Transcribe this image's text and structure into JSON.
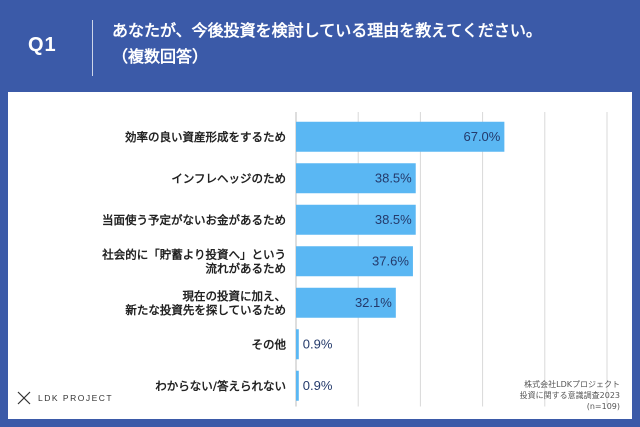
{
  "header": {
    "q_label": "Q1",
    "title_line1": "あなたが、今後投資を検討している理由を教えてください。",
    "title_line2": "（複数回答）"
  },
  "footer": {
    "logo_text": "LDK PROJECT",
    "source_line1": "株式会社LDKプロジェクト",
    "source_line2": "投資に関する意識調査2023",
    "source_line3": "(n=109)"
  },
  "colors": {
    "background": "#3b5aa8",
    "bar": "#5ab7f3",
    "value_text": "#243a6b"
  },
  "chart_data": {
    "type": "bar",
    "orientation": "horizontal",
    "categories": [
      [
        "効率の良い資産形成をするため"
      ],
      [
        "インフレヘッジのため"
      ],
      [
        "当面使う予定がないお金があるため"
      ],
      [
        "社会的に「貯蓄より投資へ」という",
        "流れがあるため"
      ],
      [
        "現在の投資に加え、",
        "新たな投資先を探しているため"
      ],
      [
        "その他"
      ],
      [
        "わからない/答えられない"
      ]
    ],
    "values": [
      67.0,
      38.5,
      38.5,
      37.6,
      32.1,
      0.9,
      0.9
    ],
    "value_labels": [
      "67.0%",
      "38.5%",
      "38.5%",
      "37.6%",
      "32.1%",
      "0.9%",
      "0.9%"
    ],
    "unit": "%",
    "xlim": [
      0,
      100
    ],
    "grid": true
  }
}
